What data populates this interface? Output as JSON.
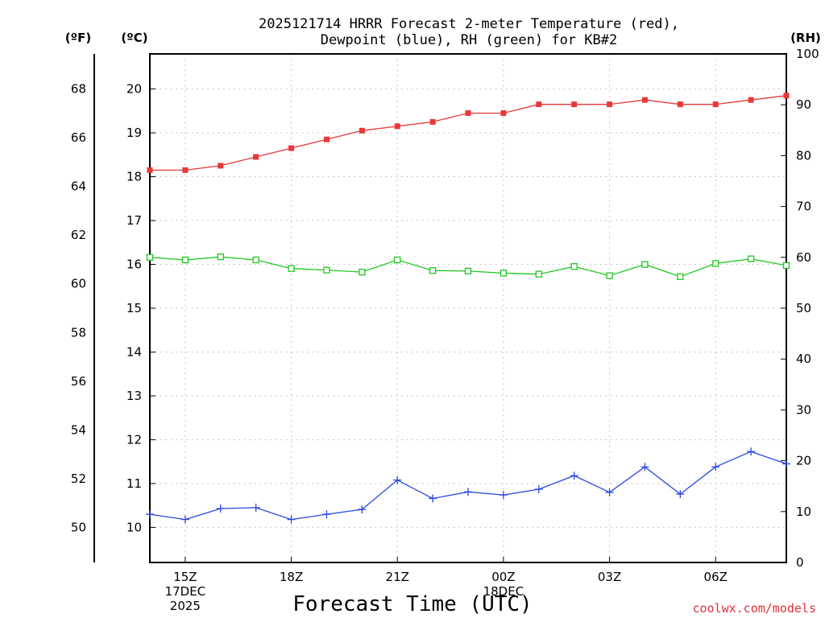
{
  "chart_data": {
    "type": "line",
    "title_lines": [
      "2025121714 HRRR Forecast 2-meter Temperature (red),",
      "Dewpoint (blue), RH (green) for KB#2"
    ],
    "xlabel": "Forecast Time (UTC)",
    "credit": "coolwx.com/models",
    "units": {
      "fahrenheit": "(ºF)",
      "celsius": "(ºC)",
      "rh": "(RH)"
    },
    "x_range_hours": [
      14,
      32
    ],
    "x_ticks": [
      {
        "hour": 15,
        "lines": [
          "15Z",
          "17DEC",
          "2025"
        ]
      },
      {
        "hour": 18,
        "lines": [
          "18Z"
        ]
      },
      {
        "hour": 21,
        "lines": [
          "21Z"
        ]
      },
      {
        "hour": 24,
        "lines": [
          "00Z",
          "18DEC"
        ]
      },
      {
        "hour": 27,
        "lines": [
          "03Z"
        ]
      },
      {
        "hour": 30,
        "lines": [
          "06Z"
        ]
      }
    ],
    "celsius_axis": {
      "range": [
        9.2,
        20.8
      ],
      "ticks": [
        10,
        11,
        12,
        13,
        14,
        15,
        16,
        17,
        18,
        19,
        20
      ]
    },
    "fahrenheit_axis": {
      "range": [
        48.56,
        69.44
      ],
      "ticks": [
        50,
        52,
        54,
        56,
        58,
        60,
        62,
        64,
        66,
        68
      ]
    },
    "rh_axis": {
      "range": [
        0,
        100
      ],
      "ticks": [
        0,
        10,
        20,
        30,
        40,
        50,
        60,
        70,
        80,
        90,
        100
      ]
    },
    "grid": true,
    "series": [
      {
        "name": "Temperature",
        "color": "#e8383a",
        "axis": "celsius",
        "marker": "filled-square",
        "x": [
          14,
          15,
          16,
          17,
          18,
          19,
          20,
          21,
          22,
          23,
          24,
          25,
          26,
          27,
          28,
          29,
          30,
          31,
          32
        ],
        "values": [
          18.15,
          18.15,
          18.25,
          18.45,
          18.65,
          18.85,
          19.05,
          19.15,
          19.25,
          19.45,
          19.45,
          19.65,
          19.65,
          19.65,
          19.75,
          19.65,
          19.65,
          19.75,
          19.85
        ]
      },
      {
        "name": "Dewpoint",
        "color": "#2b48e0",
        "axis": "celsius",
        "marker": "plus",
        "x": [
          14,
          15,
          16,
          17,
          18,
          19,
          20,
          21,
          22,
          23,
          24,
          25,
          26,
          27,
          28,
          29,
          30,
          31,
          32
        ],
        "values": [
          10.3,
          10.18,
          10.43,
          10.45,
          10.18,
          10.3,
          10.41,
          11.08,
          10.66,
          10.81,
          10.74,
          10.87,
          11.18,
          10.8,
          11.38,
          10.76,
          11.38,
          11.73,
          11.45
        ]
      },
      {
        "name": "RH",
        "color": "#22c822",
        "axis": "rh",
        "marker": "open-square",
        "x": [
          14,
          15,
          16,
          17,
          18,
          19,
          20,
          21,
          22,
          23,
          24,
          25,
          26,
          27,
          28,
          29,
          30,
          31,
          32
        ],
        "values": [
          60,
          59.5,
          60.1,
          59.5,
          57.8,
          57.5,
          57.1,
          59.5,
          57.4,
          57.3,
          56.9,
          56.7,
          58.2,
          56.4,
          58.6,
          56.2,
          58.8,
          59.7,
          58.4
        ]
      }
    ]
  }
}
